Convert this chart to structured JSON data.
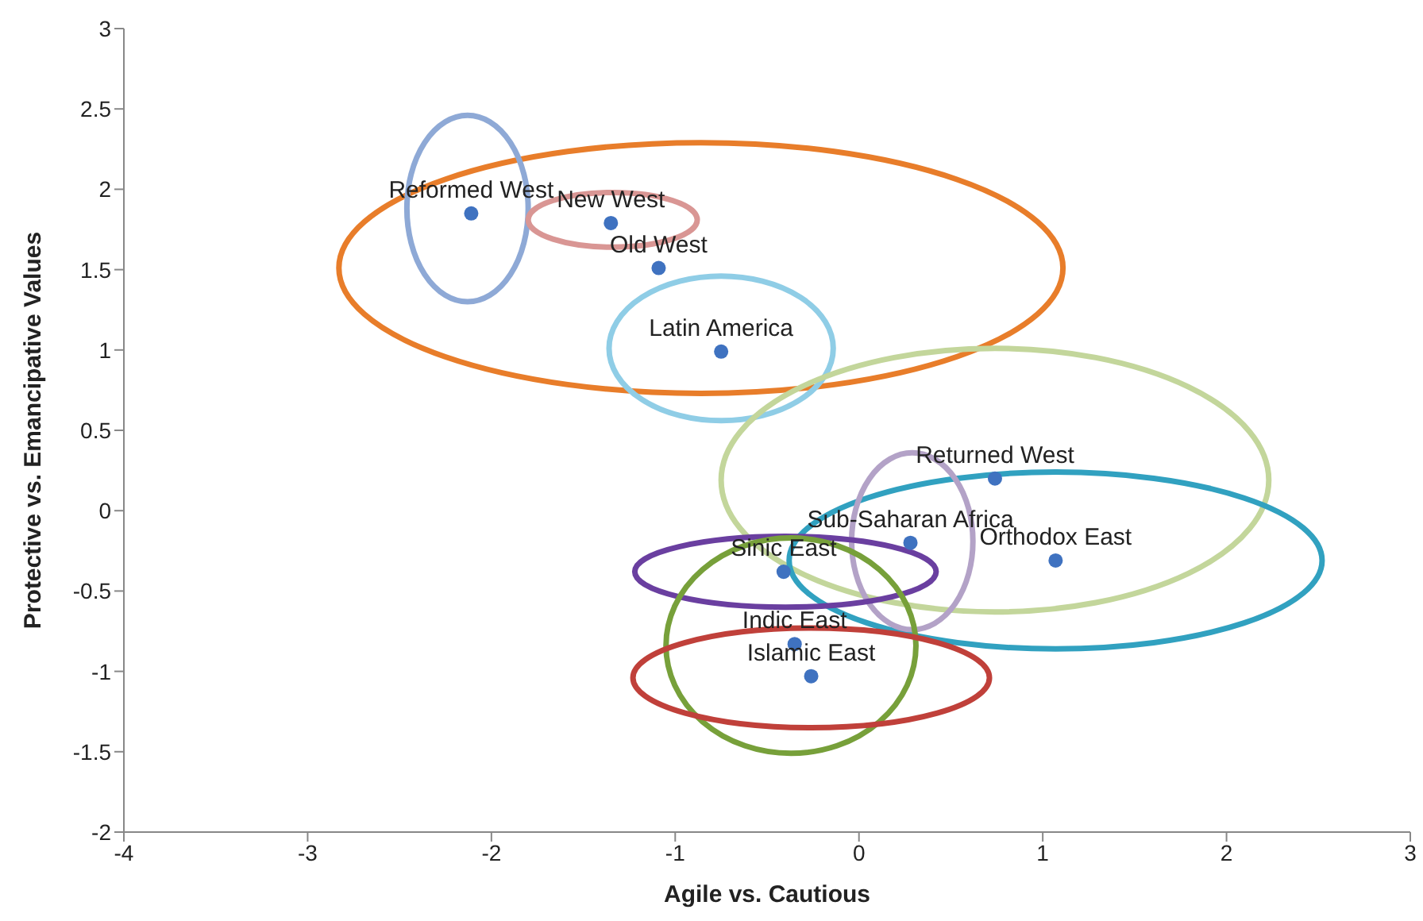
{
  "chart_data": {
    "type": "scatter",
    "xlabel": "Agile vs. Cautious",
    "ylabel": "Protective vs. Emancipative Values",
    "xlim": [
      -4,
      3
    ],
    "xticks": [
      -4,
      -3,
      -2,
      -1,
      0,
      1,
      2,
      3
    ],
    "ylim": [
      -2,
      3
    ],
    "yticks": [
      -2,
      -1.5,
      -1,
      -0.5,
      0,
      0.5,
      1,
      1.5,
      2,
      2.5,
      3
    ],
    "grid": false,
    "marker": "circle",
    "series": [
      {
        "color": "#3f72c0",
        "x": [
          -2.11,
          -1.35,
          -1.09,
          -0.75,
          0.74,
          0.28,
          1.07,
          -0.41,
          -0.35,
          -0.26
        ],
        "values": [
          1.85,
          1.79,
          1.51,
          0.99,
          0.2,
          -0.2,
          -0.31,
          -0.38,
          -0.83,
          -1.03
        ]
      }
    ],
    "annotations": [
      {
        "text": "Reformed West",
        "x": -2.11,
        "y": 1.85
      },
      {
        "text": "New West",
        "x": -1.35,
        "y": 1.79
      },
      {
        "text": "Old West",
        "x": -1.09,
        "y": 1.51
      },
      {
        "text": "Latin America",
        "x": -0.75,
        "y": 0.99
      },
      {
        "text": "Returned West",
        "x": 0.74,
        "y": 0.2
      },
      {
        "text": "Sub-Saharan Africa",
        "x": 0.28,
        "y": -0.2
      },
      {
        "text": "Orthodox East",
        "x": 1.07,
        "y": -0.31
      },
      {
        "text": "Sinic East",
        "x": -0.41,
        "y": -0.38
      },
      {
        "text": "Indic East",
        "x": -0.35,
        "y": -0.83
      },
      {
        "text": "Islamic East",
        "x": -0.26,
        "y": -1.03
      }
    ]
  }
}
